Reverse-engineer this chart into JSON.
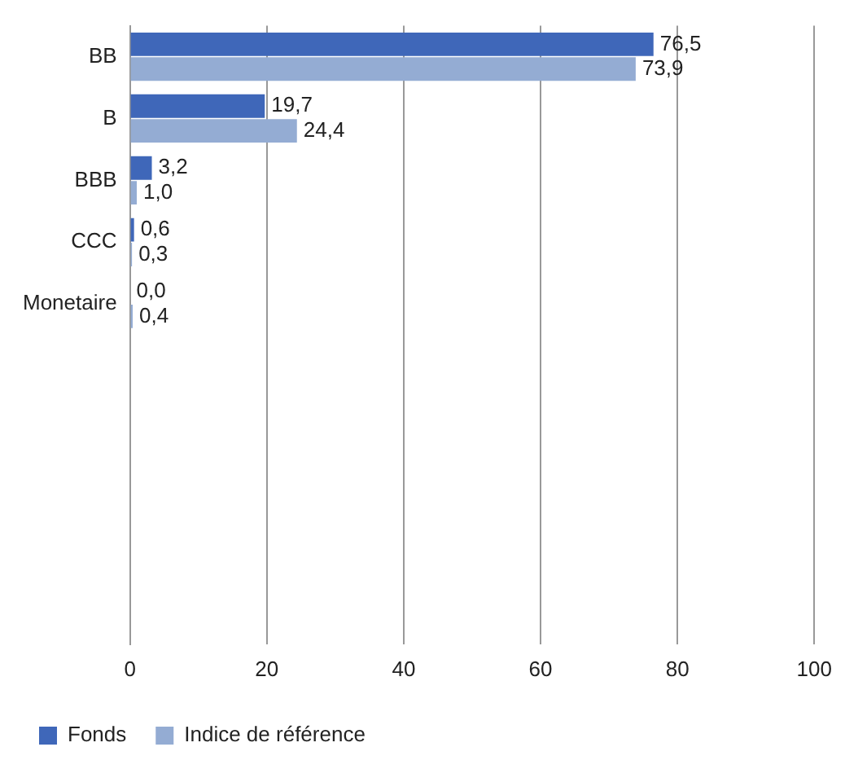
{
  "chart_data": {
    "type": "bar",
    "orientation": "horizontal",
    "categories": [
      "BB",
      "B",
      "BBB",
      "CCC",
      "Monetaire",
      null,
      null,
      null,
      null,
      null
    ],
    "series": [
      {
        "name": "Fonds",
        "color": "#3f67b9",
        "values": [
          76.5,
          19.7,
          3.2,
          0.6,
          0.0,
          null,
          null,
          null,
          null,
          null
        ],
        "value_labels": [
          "76,5",
          "19,7",
          "3,2",
          "0,6",
          "0,0",
          null,
          null,
          null,
          null,
          null
        ]
      },
      {
        "name": "Indice de référence",
        "color": "#94acd3",
        "values": [
          73.9,
          24.4,
          1.0,
          0.3,
          0.4,
          null,
          null,
          null,
          null,
          null
        ],
        "value_labels": [
          "73,9",
          "24,4",
          "1,0",
          "0,3",
          "0,4",
          null,
          null,
          null,
          null,
          null
        ]
      }
    ],
    "xlim": [
      0,
      100
    ],
    "xticks": [
      0,
      20,
      40,
      60,
      80,
      100
    ],
    "grid": "x",
    "legend": "bottom"
  }
}
